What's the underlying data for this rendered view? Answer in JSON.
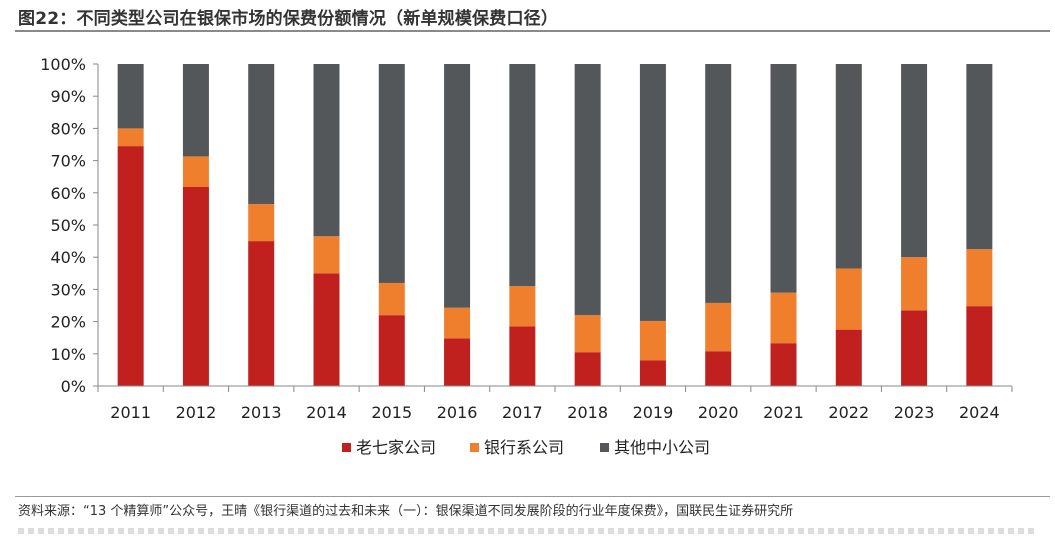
{
  "header": {
    "title": "图22：不同类型公司在银保市场的保费份额情况（新单规模保费口径）"
  },
  "footer": {
    "source": "资料来源：“13 个精算师”公众号，王晴《银行渠道的过去和未来（一）：银保渠道不同发展阶段的行业年度保费》，国联民生证券研究所"
  },
  "chart_data": {
    "type": "bar",
    "stacked": true,
    "title": "",
    "xlabel": "",
    "ylabel": "",
    "ylim": [
      0,
      100
    ],
    "y_ticks": [
      "0%",
      "10%",
      "20%",
      "30%",
      "40%",
      "50%",
      "60%",
      "70%",
      "80%",
      "90%",
      "100%"
    ],
    "categories": [
      "2011",
      "2012",
      "2013",
      "2014",
      "2015",
      "2016",
      "2017",
      "2018",
      "2019",
      "2020",
      "2021",
      "2022",
      "2023",
      "2024"
    ],
    "series": [
      {
        "name": "老七家公司",
        "color": "#c0201e",
        "values": [
          74.5,
          61.8,
          45.0,
          35.0,
          22.0,
          14.8,
          18.5,
          10.5,
          8.0,
          10.8,
          13.3,
          17.5,
          23.5,
          24.8
        ]
      },
      {
        "name": "银行系公司",
        "color": "#f07f2d",
        "values": [
          5.5,
          9.5,
          11.5,
          11.5,
          10.0,
          9.5,
          12.5,
          11.5,
          12.2,
          15.0,
          15.7,
          19.0,
          16.5,
          17.7
        ]
      },
      {
        "name": "其他中小公司",
        "color": "#545759",
        "values": [
          20.0,
          28.7,
          43.5,
          53.5,
          68.0,
          75.7,
          69.0,
          78.0,
          79.8,
          74.2,
          71.0,
          63.5,
          60.0,
          57.5
        ]
      }
    ],
    "legend_position": "bottom-center",
    "grid": false
  }
}
